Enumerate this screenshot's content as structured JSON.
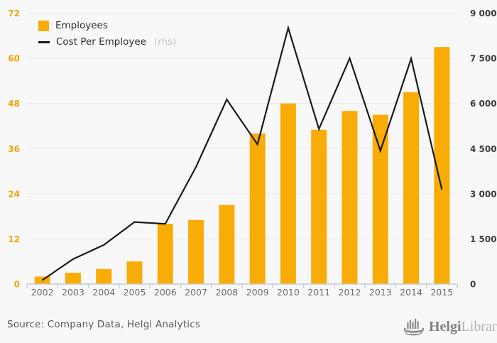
{
  "legend": {
    "employees": {
      "label": "Employees"
    },
    "cost": {
      "label": "Cost Per Employee",
      "suffix": "(rhs)"
    }
  },
  "chart_data": {
    "type": "bar+line",
    "categories": [
      "2002",
      "2003",
      "2004",
      "2005",
      "2006",
      "2007",
      "2008",
      "2009",
      "2010",
      "2011",
      "2012",
      "2013",
      "2014",
      "2015"
    ],
    "series": [
      {
        "name": "Employees",
        "type": "bar",
        "axis": "left",
        "color": "#F9AC05",
        "values": [
          2,
          3,
          4,
          6,
          16,
          17,
          21,
          40,
          48,
          41,
          46,
          45,
          51,
          63
        ]
      },
      {
        "name": "Cost Per Employee",
        "type": "line",
        "axis": "right",
        "color": "#1a1a1a",
        "values": [
          130,
          830,
          1300,
          2060,
          2000,
          3890,
          6130,
          4640,
          8510,
          5150,
          7500,
          4430,
          7490,
          3140
        ]
      }
    ],
    "left_axis": {
      "min": 0,
      "max": 72,
      "step": 12,
      "labels": [
        "0",
        "12",
        "24",
        "36",
        "48",
        "60",
        "72"
      ],
      "color": "#F0A30A"
    },
    "right_axis": {
      "min": 0,
      "max": 9000,
      "step": 1500,
      "labels": [
        "0",
        "1 500",
        "3 000",
        "4 500",
        "6 000",
        "7 500",
        "9 000"
      ],
      "color": "#3d3d3d"
    },
    "grid": true,
    "legend_position": "top-left",
    "colors": {
      "grid": "#e7e7e7",
      "axis_line": "#c3cbdb",
      "tick": "#c3cbdb",
      "x_label": "#6b6b6b",
      "background": "#f8f8f8"
    }
  },
  "footer": {
    "source": "Source: Company Data, Helgi Analytics",
    "logo": {
      "part1": "Helgi",
      "part2": "Library."
    }
  }
}
